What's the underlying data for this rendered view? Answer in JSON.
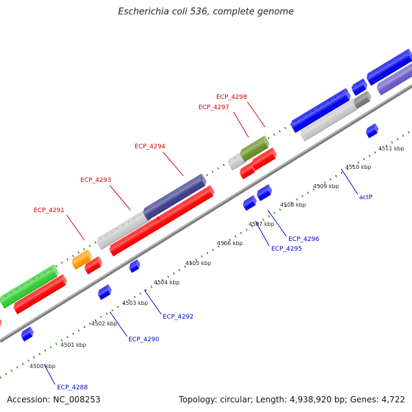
{
  "header": {
    "title": "Escherichia coli 536, complete genome"
  },
  "footer": {
    "accession": "Accession: NC_008253",
    "topology": "Topology: circular; Length: 4,938,920 bp; Genes: 4,722"
  },
  "colors": {
    "backbone": "#888888",
    "dots": "#2e7d1e",
    "forward_label": "#cc0000",
    "reverse_label": "#0000cc",
    "red": "#ff0000",
    "blue": "#0000ee",
    "gray": "#c8c8c8",
    "dark_gray": "#777777",
    "green": "#33cc33",
    "olive": "#6b8e23",
    "orange": "#ff9900",
    "navy": "#3c3c8c",
    "purple": "#6a5acd"
  },
  "ruler": {
    "unit": "kbp",
    "ticks": [
      "4500 kbp",
      "4501 kbp",
      "4502 kbp",
      "4503 kbp",
      "4504 kbp",
      "4505 kbp",
      "4506 kbp",
      "4507 kbp",
      "4508 kbp",
      "4509 kbp",
      "4510 kbp",
      "4511 kbp"
    ]
  },
  "genes_forward": [
    {
      "label": "ECP_4291"
    },
    {
      "label": "ECP_4293"
    },
    {
      "label": "ECP_4294"
    },
    {
      "label": "ECP_4297"
    },
    {
      "label": "ECP_4298"
    }
  ],
  "genes_reverse": [
    {
      "label": "ECP_4288"
    },
    {
      "label": "ECP_4290"
    },
    {
      "label": "ECP_4292"
    },
    {
      "label": "ECP_4295"
    },
    {
      "label": "ECP_4296"
    },
    {
      "label": "actP"
    }
  ]
}
